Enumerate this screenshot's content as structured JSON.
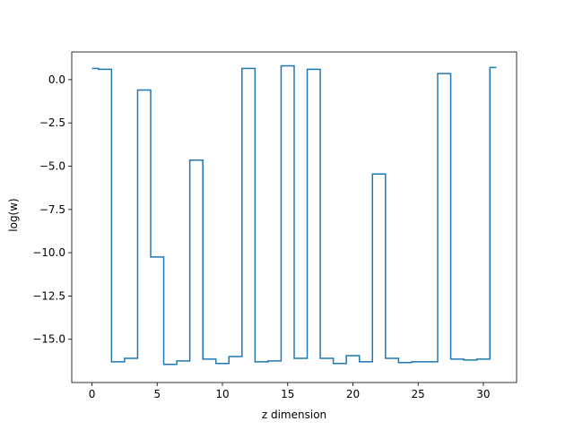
{
  "chart_data": {
    "type": "line",
    "drawstyle": "steps-mid",
    "xlabel": "z dimension",
    "ylabel": "log(w)",
    "xlim": [
      -1.55,
      32.55
    ],
    "ylim": [
      -17.5,
      1.6
    ],
    "grid": false,
    "x_ticks": [
      0,
      5,
      10,
      15,
      20,
      25,
      30
    ],
    "x_tick_labels": [
      "0",
      "5",
      "10",
      "15",
      "20",
      "25",
      "30"
    ],
    "y_ticks": [
      0.0,
      -2.5,
      -5.0,
      -7.5,
      -10.0,
      -12.5,
      -15.0
    ],
    "y_tick_labels": [
      "0.0",
      "−2.5",
      "−5.0",
      "−7.5",
      "−10.0",
      "−12.5",
      "−15.0"
    ],
    "series": [
      {
        "color": "#1f77b4",
        "x": [
          0,
          1,
          2,
          3,
          4,
          5,
          6,
          7,
          8,
          9,
          10,
          11,
          12,
          13,
          14,
          15,
          16,
          17,
          18,
          19,
          20,
          21,
          22,
          23,
          24,
          25,
          26,
          27,
          28,
          29,
          30,
          31
        ],
        "y": [
          0.65,
          0.6,
          -16.3,
          -16.1,
          -0.6,
          -10.25,
          -16.45,
          -16.25,
          -4.65,
          -16.15,
          -16.4,
          -16.0,
          0.65,
          -16.3,
          -16.25,
          0.8,
          -16.1,
          0.6,
          -16.1,
          -16.4,
          -15.95,
          -16.3,
          -5.45,
          -16.1,
          -16.35,
          -16.3,
          -16.3,
          0.35,
          -16.15,
          -16.2,
          -16.15,
          0.7
        ]
      }
    ]
  }
}
